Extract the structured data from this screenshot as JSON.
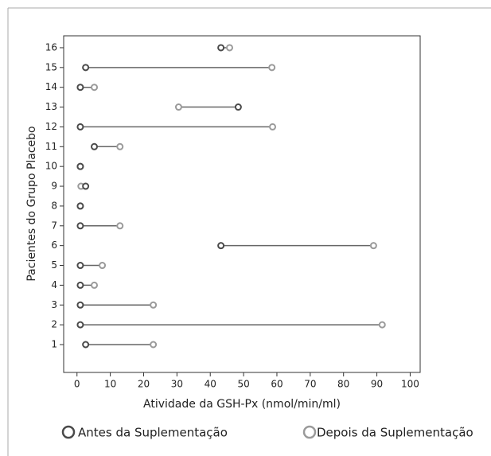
{
  "chart_data": {
    "type": "dumbbell",
    "xlabel": "Atividade da GSH-Px (nmol/min/ml)",
    "ylabel": "Pacientes do Grupo Placebo",
    "categories": [
      "1",
      "2",
      "3",
      "4",
      "5",
      "6",
      "7",
      "8",
      "9",
      "10",
      "11",
      "12",
      "13",
      "14",
      "15",
      "16"
    ],
    "series": [
      {
        "name": "Antes da Suplementação",
        "color": "#4a4a4a",
        "values": [
          2.6,
          1,
          1,
          1,
          1,
          43.2,
          1,
          1,
          2.6,
          1,
          5.2,
          1,
          48.4,
          1,
          2.6,
          43.2
        ]
      },
      {
        "name": "Depois da Suplementação",
        "color": "#9a9a9a",
        "values": [
          22.9,
          91.6,
          22.9,
          5.2,
          7.6,
          89,
          12.9,
          1,
          1.2,
          1,
          12.9,
          58.7,
          30.5,
          5.2,
          58.5,
          45.8
        ]
      }
    ],
    "xlim": [
      -4,
      103
    ],
    "xticks": [
      0,
      10,
      20,
      30,
      40,
      50,
      60,
      70,
      80,
      90,
      100
    ]
  }
}
